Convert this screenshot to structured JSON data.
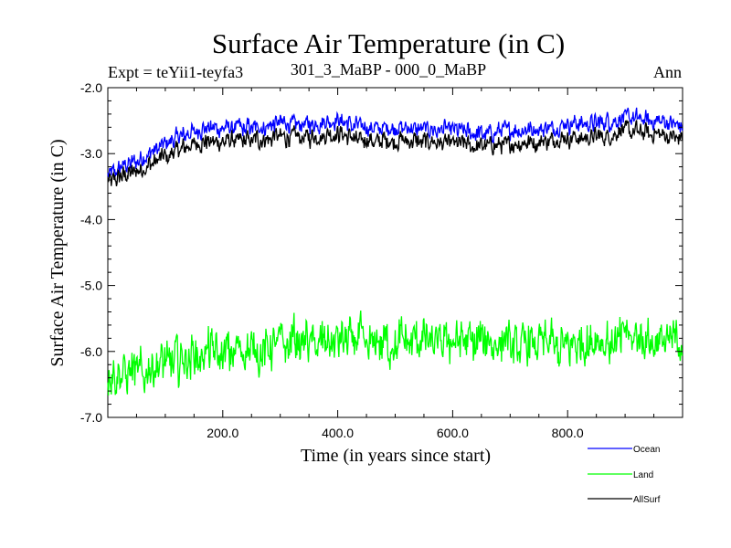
{
  "chart_data": {
    "type": "line",
    "title": "Surface Air Temperature (in C)",
    "subtitle_left": "Expt = teYii1-teyfa3",
    "subtitle_center": "301_3_MaBP - 000_0_MaBP",
    "subtitle_right": "Ann",
    "xlabel": "Time (in years since start)",
    "ylabel": "Surface Air Temperature (in C)",
    "xlim": [
      0,
      1000
    ],
    "ylim": [
      -7.0,
      -2.0
    ],
    "x_ticks": [
      200,
      400,
      600,
      800
    ],
    "x_tick_labels": [
      "200.0",
      "400.0",
      "600.0",
      "800.0"
    ],
    "y_ticks": [
      -2.0,
      -3.0,
      -4.0,
      -5.0,
      -6.0,
      -7.0
    ],
    "y_tick_labels": [
      "-2.0",
      "-3.0",
      "-4.0",
      "-5.0",
      "-6.0",
      "-7.0"
    ],
    "grid": false,
    "legend_position": "bottom-right",
    "series": [
      {
        "name": "Ocean",
        "color": "#0000ff",
        "x": [
          0,
          25,
          50,
          75,
          100,
          125,
          150,
          175,
          200,
          250,
          300,
          350,
          400,
          450,
          500,
          550,
          600,
          650,
          700,
          750,
          800,
          850,
          900,
          950,
          1000
        ],
        "mean": [
          -3.35,
          -3.2,
          -3.1,
          -3.0,
          -2.85,
          -2.75,
          -2.65,
          -2.6,
          -2.62,
          -2.6,
          -2.55,
          -2.55,
          -2.5,
          -2.62,
          -2.6,
          -2.62,
          -2.65,
          -2.7,
          -2.65,
          -2.62,
          -2.55,
          -2.55,
          -2.45,
          -2.5,
          -2.58
        ],
        "noise": 0.12
      },
      {
        "name": "Land",
        "color": "#00ff00",
        "x": [
          0,
          25,
          50,
          75,
          100,
          125,
          150,
          175,
          200,
          250,
          300,
          350,
          400,
          450,
          500,
          550,
          600,
          650,
          700,
          750,
          800,
          850,
          900,
          950,
          1000
        ],
        "mean": [
          -6.4,
          -6.35,
          -6.3,
          -6.25,
          -6.2,
          -6.15,
          -6.05,
          -6.0,
          -6.05,
          -6.0,
          -5.9,
          -5.85,
          -5.8,
          -5.9,
          -5.85,
          -5.85,
          -5.9,
          -5.85,
          -5.9,
          -5.85,
          -5.9,
          -5.85,
          -5.8,
          -5.85,
          -5.85
        ],
        "noise": 0.26
      },
      {
        "name": "AllSurf",
        "color": "#000000",
        "x": [
          0,
          25,
          50,
          75,
          100,
          125,
          150,
          175,
          200,
          250,
          300,
          350,
          400,
          450,
          500,
          550,
          600,
          650,
          700,
          750,
          800,
          850,
          900,
          950,
          1000
        ],
        "mean": [
          -3.45,
          -3.35,
          -3.25,
          -3.15,
          -3.05,
          -2.95,
          -2.85,
          -2.8,
          -2.82,
          -2.8,
          -2.75,
          -2.75,
          -2.7,
          -2.82,
          -2.8,
          -2.82,
          -2.85,
          -2.9,
          -2.85,
          -2.82,
          -2.75,
          -2.75,
          -2.65,
          -2.7,
          -2.78
        ],
        "noise": 0.12
      }
    ]
  }
}
